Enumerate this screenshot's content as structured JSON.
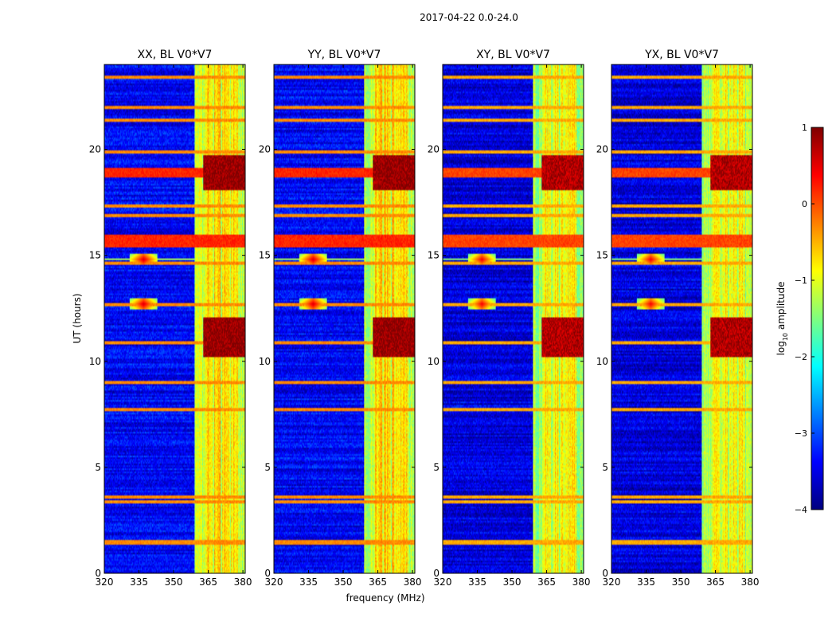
{
  "figure_title": "2017-04-22 0.0-24.0",
  "colors": {
    "jet": [
      "#00007f",
      "#0000ff",
      "#007fff",
      "#00ffff",
      "#7fff7f",
      "#ffff00",
      "#ff7f00",
      "#ff0000",
      "#7f0000"
    ],
    "background": "#ffffff"
  },
  "colorbar": {
    "label_main": "log",
    "label_sub": "10",
    "label_rest": " amplitude",
    "range": [
      -4,
      1
    ],
    "ticks": [
      {
        "value": 1,
        "label": "1"
      },
      {
        "value": 0,
        "label": "0"
      },
      {
        "value": -1,
        "label": "−1"
      },
      {
        "value": -2,
        "label": "−2"
      },
      {
        "value": -3,
        "label": "−3"
      },
      {
        "value": -4,
        "label": "−4"
      }
    ]
  },
  "chart_data": {
    "type": "heatmap",
    "xlabel": "frequency (MHz)",
    "ylabel": "UT (hours)",
    "xlim": [
      320,
      381
    ],
    "ylim": [
      0,
      24
    ],
    "xticks": [
      320,
      335,
      350,
      365,
      380
    ],
    "yticks": [
      0,
      5,
      10,
      15,
      20
    ],
    "panels": [
      {
        "title": "XX, BL V0*V7",
        "pol": "XX"
      },
      {
        "title": "YY, BL V0*V7",
        "pol": "YY"
      },
      {
        "title": "XY, BL V0*V7",
        "pol": "XY"
      },
      {
        "title": "YX, BL V0*V7",
        "pol": "YX"
      }
    ],
    "features": {
      "strong_band_MHz": [
        359,
        381
      ],
      "bright_subbands_MHz": [
        [
          363.5,
          367
        ],
        [
          367.5,
          370.5
        ],
        [
          371,
          374.5
        ],
        [
          375,
          378
        ]
      ],
      "hot_hours": [
        [
          18.1,
          19.7
        ],
        [
          10.2,
          12.1
        ]
      ],
      "red_hour_bands": [
        [
          15.4,
          16.0
        ],
        [
          18.7,
          19.1
        ]
      ],
      "orange_hour_lines": [
        23.4,
        22.0,
        21.4,
        19.9,
        17.3,
        16.9,
        14.6,
        12.7,
        10.9,
        9.0,
        7.7,
        3.6,
        3.4,
        1.5,
        1.4
      ],
      "rfi_sources": [
        {
          "freq_MHz": 337,
          "hour": 14.8
        },
        {
          "freq_MHz": 337,
          "hour": 12.7
        }
      ],
      "amplitude_log10": {
        "floor": -3.4,
        "band": -1.2,
        "peak": 0.9
      }
    }
  }
}
